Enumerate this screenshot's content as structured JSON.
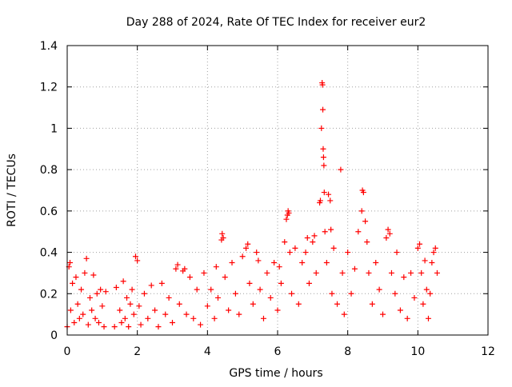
{
  "chart_data": {
    "type": "scatter",
    "title": "Day 288 of 2024, Rate Of TEC Index for receiver eur2",
    "xlabel": "GPS time / hours",
    "ylabel": "ROTI / TECUs",
    "xlim": [
      0,
      12
    ],
    "ylim": [
      0,
      1.4
    ],
    "xticks": [
      0,
      2,
      4,
      6,
      8,
      10,
      12
    ],
    "yticks": [
      0,
      0.2,
      0.4,
      0.6,
      0.8,
      1,
      1.2,
      1.4
    ],
    "xtick_labels": [
      "0",
      "2",
      "4",
      "6",
      "8",
      "10",
      "12"
    ],
    "ytick_labels": [
      "0",
      "0.2",
      "0.4",
      "0.6",
      "0.8",
      "1",
      "1.2",
      "1.4"
    ],
    "grid": true,
    "marker": "+",
    "marker_color": "#ff0000",
    "points": [
      [
        0.0,
        0.04
      ],
      [
        0.05,
        0.33
      ],
      [
        0.08,
        0.35
      ],
      [
        0.1,
        0.12
      ],
      [
        0.15,
        0.25
      ],
      [
        0.2,
        0.06
      ],
      [
        0.25,
        0.28
      ],
      [
        0.3,
        0.15
      ],
      [
        0.35,
        0.08
      ],
      [
        0.4,
        0.22
      ],
      [
        0.45,
        0.1
      ],
      [
        0.5,
        0.3
      ],
      [
        0.55,
        0.37
      ],
      [
        0.6,
        0.05
      ],
      [
        0.65,
        0.18
      ],
      [
        0.7,
        0.12
      ],
      [
        0.75,
        0.29
      ],
      [
        0.8,
        0.08
      ],
      [
        0.85,
        0.2
      ],
      [
        0.9,
        0.06
      ],
      [
        0.95,
        0.22
      ],
      [
        1.0,
        0.14
      ],
      [
        1.05,
        0.04
      ],
      [
        1.1,
        0.21
      ],
      [
        1.35,
        0.04
      ],
      [
        1.4,
        0.23
      ],
      [
        1.5,
        0.12
      ],
      [
        1.55,
        0.06
      ],
      [
        1.6,
        0.26
      ],
      [
        1.65,
        0.08
      ],
      [
        1.7,
        0.18
      ],
      [
        1.75,
        0.04
      ],
      [
        1.8,
        0.15
      ],
      [
        1.85,
        0.22
      ],
      [
        1.9,
        0.1
      ],
      [
        1.95,
        0.38
      ],
      [
        2.0,
        0.36
      ],
      [
        2.05,
        0.14
      ],
      [
        2.1,
        0.05
      ],
      [
        2.2,
        0.2
      ],
      [
        2.3,
        0.08
      ],
      [
        2.4,
        0.24
      ],
      [
        2.5,
        0.12
      ],
      [
        2.6,
        0.04
      ],
      [
        2.7,
        0.25
      ],
      [
        2.8,
        0.1
      ],
      [
        2.9,
        0.18
      ],
      [
        3.0,
        0.06
      ],
      [
        3.1,
        0.32
      ],
      [
        3.15,
        0.34
      ],
      [
        3.2,
        0.15
      ],
      [
        3.3,
        0.31
      ],
      [
        3.35,
        0.32
      ],
      [
        3.4,
        0.1
      ],
      [
        3.5,
        0.28
      ],
      [
        3.6,
        0.08
      ],
      [
        3.7,
        0.22
      ],
      [
        3.8,
        0.05
      ],
      [
        3.9,
        0.3
      ],
      [
        4.0,
        0.14
      ],
      [
        4.1,
        0.22
      ],
      [
        4.2,
        0.08
      ],
      [
        4.25,
        0.33
      ],
      [
        4.3,
        0.18
      ],
      [
        4.4,
        0.46
      ],
      [
        4.42,
        0.49
      ],
      [
        4.45,
        0.47
      ],
      [
        4.5,
        0.28
      ],
      [
        4.6,
        0.12
      ],
      [
        4.7,
        0.35
      ],
      [
        4.8,
        0.2
      ],
      [
        4.9,
        0.1
      ],
      [
        5.0,
        0.38
      ],
      [
        5.1,
        0.42
      ],
      [
        5.15,
        0.44
      ],
      [
        5.2,
        0.25
      ],
      [
        5.3,
        0.15
      ],
      [
        5.4,
        0.4
      ],
      [
        5.45,
        0.36
      ],
      [
        5.5,
        0.22
      ],
      [
        5.6,
        0.08
      ],
      [
        5.7,
        0.3
      ],
      [
        5.8,
        0.18
      ],
      [
        5.9,
        0.35
      ],
      [
        6.0,
        0.12
      ],
      [
        6.05,
        0.33
      ],
      [
        6.1,
        0.25
      ],
      [
        6.2,
        0.45
      ],
      [
        6.25,
        0.56
      ],
      [
        6.28,
        0.58
      ],
      [
        6.3,
        0.6
      ],
      [
        6.32,
        0.59
      ],
      [
        6.35,
        0.4
      ],
      [
        6.4,
        0.2
      ],
      [
        6.5,
        0.42
      ],
      [
        6.6,
        0.15
      ],
      [
        6.7,
        0.35
      ],
      [
        6.8,
        0.4
      ],
      [
        6.85,
        0.47
      ],
      [
        6.9,
        0.25
      ],
      [
        7.0,
        0.45
      ],
      [
        7.05,
        0.48
      ],
      [
        7.1,
        0.3
      ],
      [
        7.2,
        0.64
      ],
      [
        7.22,
        0.65
      ],
      [
        7.25,
        1.0
      ],
      [
        7.27,
        1.22
      ],
      [
        7.28,
        1.21
      ],
      [
        7.29,
        1.09
      ],
      [
        7.3,
        0.9
      ],
      [
        7.31,
        0.86
      ],
      [
        7.32,
        0.82
      ],
      [
        7.33,
        0.69
      ],
      [
        7.35,
        0.5
      ],
      [
        7.4,
        0.35
      ],
      [
        7.45,
        0.68
      ],
      [
        7.5,
        0.65
      ],
      [
        7.52,
        0.51
      ],
      [
        7.55,
        0.2
      ],
      [
        7.6,
        0.42
      ],
      [
        7.7,
        0.15
      ],
      [
        7.8,
        0.8
      ],
      [
        7.85,
        0.3
      ],
      [
        7.9,
        0.1
      ],
      [
        8.0,
        0.4
      ],
      [
        8.1,
        0.2
      ],
      [
        8.2,
        0.32
      ],
      [
        8.3,
        0.5
      ],
      [
        8.4,
        0.6
      ],
      [
        8.42,
        0.7
      ],
      [
        8.45,
        0.69
      ],
      [
        8.5,
        0.55
      ],
      [
        8.55,
        0.45
      ],
      [
        8.6,
        0.3
      ],
      [
        8.7,
        0.15
      ],
      [
        8.8,
        0.35
      ],
      [
        8.9,
        0.22
      ],
      [
        9.0,
        0.1
      ],
      [
        9.1,
        0.47
      ],
      [
        9.15,
        0.51
      ],
      [
        9.2,
        0.49
      ],
      [
        9.25,
        0.3
      ],
      [
        9.35,
        0.2
      ],
      [
        9.4,
        0.4
      ],
      [
        9.5,
        0.12
      ],
      [
        9.6,
        0.28
      ],
      [
        9.7,
        0.08
      ],
      [
        9.8,
        0.3
      ],
      [
        9.9,
        0.18
      ],
      [
        10.0,
        0.42
      ],
      [
        10.05,
        0.44
      ],
      [
        10.1,
        0.3
      ],
      [
        10.15,
        0.15
      ],
      [
        10.2,
        0.36
      ],
      [
        10.25,
        0.22
      ],
      [
        10.3,
        0.08
      ],
      [
        10.35,
        0.2
      ],
      [
        10.4,
        0.35
      ],
      [
        10.45,
        0.4
      ],
      [
        10.5,
        0.42
      ],
      [
        10.55,
        0.3
      ]
    ]
  }
}
